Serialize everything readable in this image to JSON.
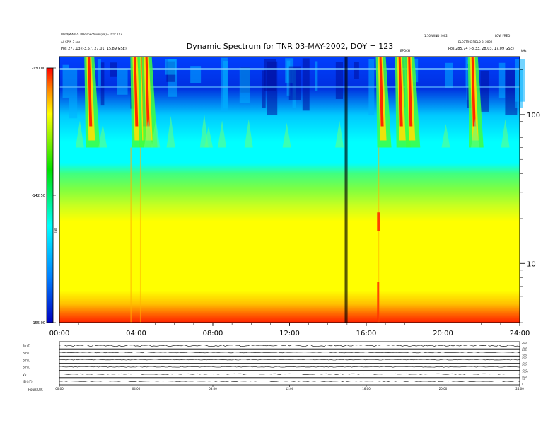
{
  "header": {
    "left_line1": "Wind/WAVES TNR spectrum (dB) – DOY 123",
    "left_line2": "All SPIN 3 sec",
    "left_line3": "Pos 277.13 (-3.57, 27.01, 15.89 GSE)",
    "title": "Dynamic Spectrum for TNR 03-MAY-2002, DOY = 123",
    "right_line1": "1.10 WIND 2002",
    "right_line1b": "LOW FREQ",
    "right_line2": "ELECTRIC FIELD 3, 2002",
    "right_line3": "Pos 285.74 (-3.33, 28.03, 17.09 GSE)",
    "mid_small": "EPOCH",
    "unit_right": "kHz"
  },
  "colorbar": {
    "ticks": [
      "-130.00",
      "-142.50",
      "-155.00"
    ],
    "label": "TNR",
    "colors": [
      "#ff0000",
      "#ffa000",
      "#ffff00",
      "#00e000",
      "#00ffff",
      "#0080ff",
      "#0000d0"
    ]
  },
  "chart_data": {
    "type": "heatmap",
    "title": "Dynamic Spectrum for TNR 03-MAY-2002, DOY = 123",
    "x": {
      "label": "",
      "range": [
        0,
        24
      ],
      "ticks": [
        "00:00",
        "04:00",
        "08:00",
        "12:00",
        "16:00",
        "20:00",
        "24:00"
      ]
    },
    "y": {
      "label": "kHz",
      "scale": "log",
      "range": [
        4,
        245
      ],
      "ticks": [
        "100",
        "10"
      ]
    },
    "z": {
      "label": "TNR",
      "range": [
        -155.0,
        -130.0
      ]
    },
    "colormap": [
      "#0000d0",
      "#0080ff",
      "#00ffff",
      "#00e000",
      "#ffff00",
      "#ffa000",
      "#ff0000"
    ],
    "markers_hours": [
      14.9,
      15.0
    ],
    "bands": [
      {
        "freq_low": 60,
        "freq_high": 245,
        "level": "low/variable"
      },
      {
        "freq_low": 42,
        "freq_high": 60,
        "level": "cyan"
      },
      {
        "freq_low": 28,
        "freq_high": 42,
        "level": "green"
      },
      {
        "freq_low": 7,
        "freq_high": 28,
        "level": "yellow"
      },
      {
        "freq_low": 4,
        "freq_high": 7,
        "level": "orange/red"
      }
    ],
    "bursts_hours": [
      1.3,
      3.7,
      4.1,
      4.3,
      16.5,
      17.5,
      18.0,
      21.3
    ]
  },
  "lower_panels": {
    "labels": [
      "B(nT)",
      "B(nT)",
      "B(nT)",
      "B(nT)",
      "Vp",
      "|B|(nT)"
    ],
    "right_ticks": [
      [
        "200",
        "100"
      ],
      [
        "200",
        "100"
      ],
      [
        "200",
        "100"
      ],
      [
        "200",
        "100"
      ],
      [
        "1000",
        "500"
      ],
      [
        "10",
        "0"
      ]
    ],
    "x_ticks": [
      "00:00",
      "04:00",
      "08:00",
      "12:00",
      "16:00",
      "20:00",
      "24:00"
    ],
    "footer": "Hours UTC"
  }
}
